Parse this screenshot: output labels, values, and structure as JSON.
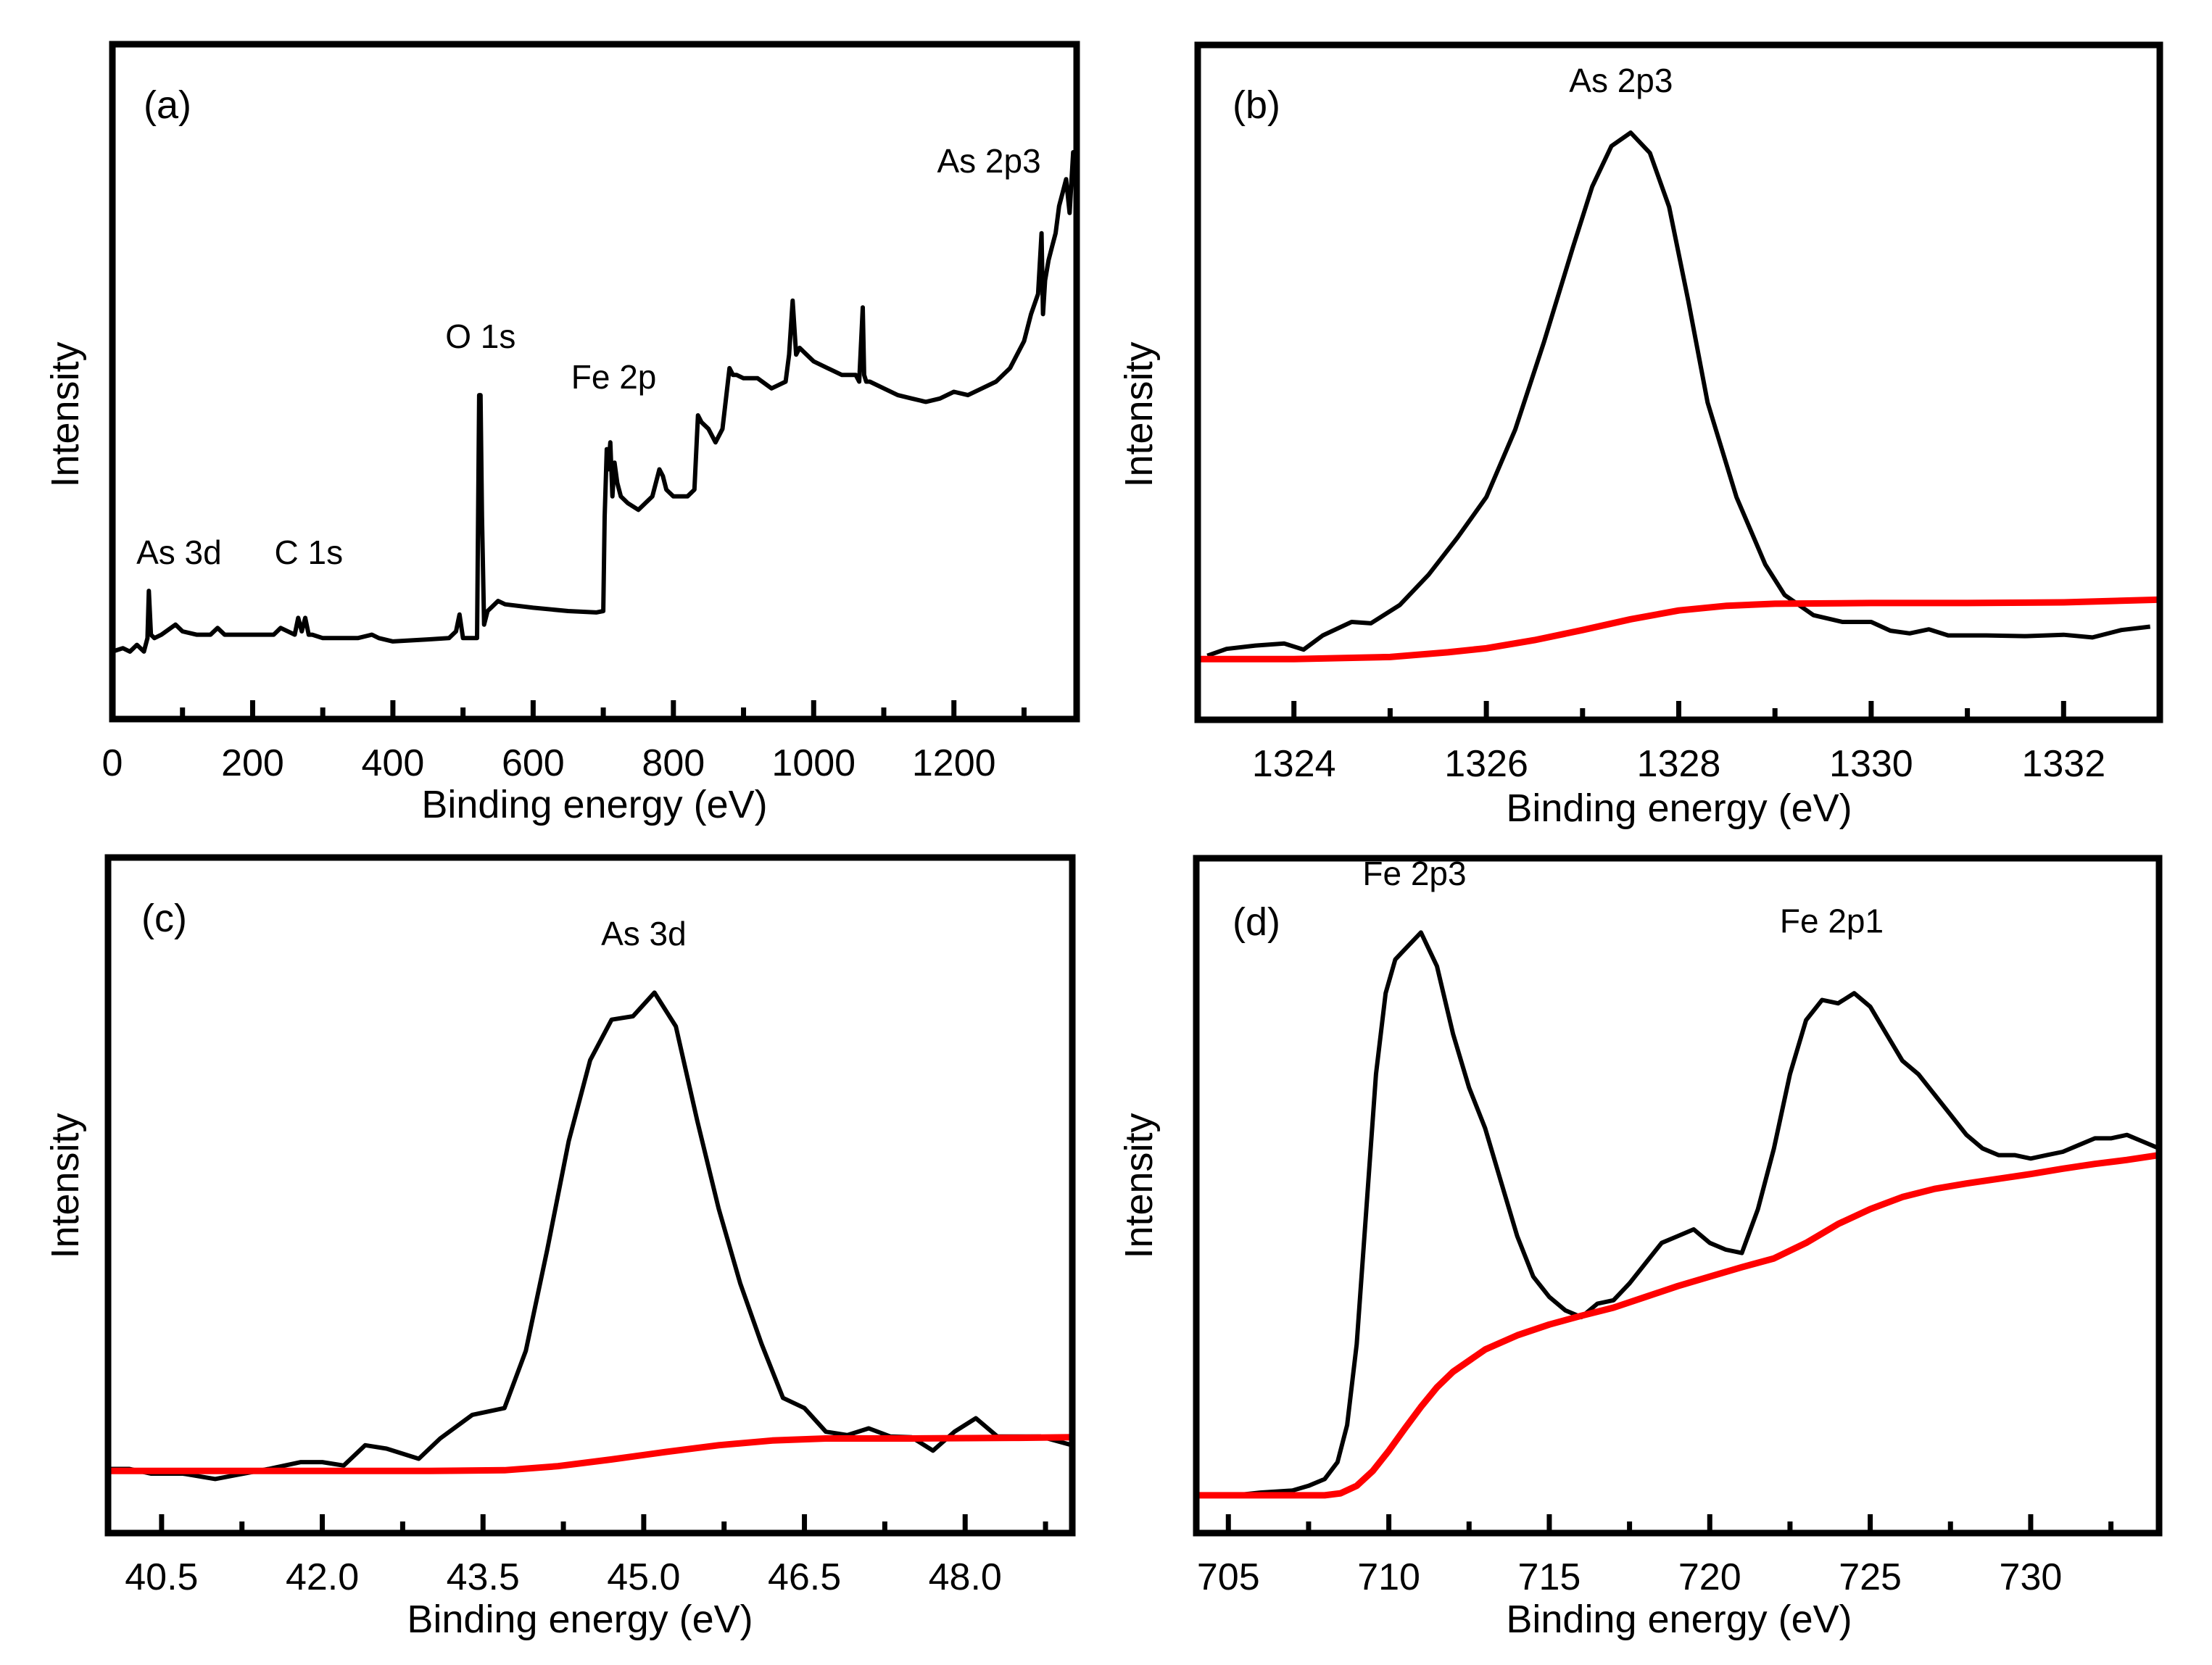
{
  "chart_data": [
    {
      "id": "a",
      "type": "line",
      "panel_label": "(a)",
      "title": "",
      "xlabel": "Binding energy (eV)",
      "ylabel": "Intensity",
      "xlim": [
        0,
        1375
      ],
      "ylim": [
        0,
        100
      ],
      "xticks_major": [
        0,
        200,
        400,
        600,
        800,
        1000,
        1200
      ],
      "xticks_minor": [
        100,
        300,
        500,
        700,
        900,
        1100,
        1300
      ],
      "xtick_labels": [
        "0",
        "200",
        "400",
        "600",
        "800",
        "1000",
        "1200"
      ],
      "grid": false,
      "annotations": [
        {
          "text": "As 3d",
          "x": 95,
          "y": 23
        },
        {
          "text": "C 1s",
          "x": 280,
          "y": 23
        },
        {
          "text": "O 1s",
          "x": 525,
          "y": 55
        },
        {
          "text": "Fe 2p",
          "x": 715,
          "y": 49
        },
        {
          "text": "As 2p3",
          "x": 1250,
          "y": 81
        }
      ],
      "series": [
        {
          "name": "survey",
          "color": "#000000",
          "x": [
            0,
            15,
            25,
            35,
            45,
            50,
            52,
            55,
            60,
            70,
            90,
            100,
            120,
            140,
            150,
            160,
            200,
            230,
            240,
            260,
            265,
            270,
            275,
            280,
            285,
            300,
            350,
            370,
            380,
            400,
            450,
            480,
            490,
            495,
            500,
            510,
            520,
            523,
            525,
            527,
            530,
            535,
            540,
            550,
            560,
            600,
            650,
            690,
            700,
            702,
            705,
            707,
            710,
            713,
            716,
            720,
            725,
            735,
            750,
            760,
            770,
            780,
            785,
            790,
            800,
            810,
            820,
            830,
            835,
            840,
            850,
            860,
            870,
            880,
            885,
            890,
            900,
            920,
            940,
            950,
            960,
            965,
            970,
            975,
            980,
            990,
            1000,
            1020,
            1040,
            1060,
            1065,
            1070,
            1072,
            1075,
            1080,
            1100,
            1120,
            1140,
            1160,
            1180,
            1200,
            1220,
            1240,
            1260,
            1280,
            1300,
            1310,
            1320,
            1325,
            1327,
            1330,
            1335,
            1340,
            1345,
            1350,
            1355,
            1360,
            1365,
            1370,
            1375
          ],
          "y": [
            10,
            10.5,
            10,
            11,
            10,
            12,
            19,
            12.5,
            12,
            12.5,
            14,
            13,
            12.5,
            12.5,
            13.5,
            12.5,
            12.5,
            12.5,
            13.5,
            12.5,
            15,
            13,
            15,
            12.5,
            12.5,
            12,
            12,
            12.5,
            12,
            11.5,
            11.8,
            12,
            13,
            15.5,
            12,
            12,
            12,
            48,
            48,
            30,
            14,
            16,
            16.5,
            17.5,
            17,
            16.5,
            16,
            15.8,
            16,
            30,
            40,
            37,
            41,
            33,
            38,
            35,
            33,
            32,
            31,
            32,
            33,
            37,
            36,
            34,
            33,
            33,
            33,
            34,
            45,
            44,
            43,
            41,
            43,
            52,
            51,
            51,
            50.5,
            50.5,
            49,
            49.5,
            50,
            54,
            62,
            54,
            55,
            54,
            53,
            52,
            51,
            51,
            50,
            61,
            51,
            50,
            50,
            49,
            48,
            47.5,
            47,
            47.5,
            48.5,
            48,
            49,
            50,
            52,
            56,
            60,
            63,
            72,
            60,
            65,
            68,
            70,
            72,
            76,
            78,
            80,
            75,
            84,
            82
          ]
        }
      ]
    },
    {
      "id": "b",
      "type": "line",
      "panel_label": "(b)",
      "title": "",
      "xlabel": "Binding energy (eV)",
      "ylabel": "Intensity",
      "xlim": [
        1323,
        1333
      ],
      "ylim": [
        0,
        100
      ],
      "xticks_major": [
        1324,
        1326,
        1328,
        1330,
        1332
      ],
      "xticks_minor": [
        1325,
        1327,
        1329,
        1331
      ],
      "xtick_labels": [
        "1324",
        "1326",
        "1328",
        "1330",
        "1332"
      ],
      "grid": false,
      "annotations": [
        {
          "text": "As 2p3",
          "x": 1327.4,
          "y": 93
        }
      ],
      "series": [
        {
          "name": "spectrum",
          "color": "#000000",
          "x": [
            1323.1,
            1323.3,
            1323.6,
            1323.9,
            1324.1,
            1324.3,
            1324.6,
            1324.8,
            1325.1,
            1325.4,
            1325.7,
            1326.0,
            1326.3,
            1326.6,
            1326.9,
            1327.1,
            1327.3,
            1327.5,
            1327.7,
            1327.9,
            1328.1,
            1328.3,
            1328.6,
            1328.9,
            1329.1,
            1329.4,
            1329.7,
            1330.0,
            1330.2,
            1330.4,
            1330.6,
            1330.8,
            1331.2,
            1331.6,
            1332.0,
            1332.3,
            1332.6,
            1332.9
          ],
          "y": [
            9.5,
            10.5,
            11,
            11.3,
            10.4,
            12.5,
            14.5,
            14.3,
            17,
            21.5,
            27,
            33,
            43,
            56,
            70,
            79,
            85,
            87,
            84,
            76,
            62,
            47,
            33,
            23,
            18.5,
            15.5,
            14.5,
            14.5,
            13.2,
            12.8,
            13.4,
            12.5,
            12.5,
            12.4,
            12.6,
            12.2,
            13.3,
            13.8
          ]
        },
        {
          "name": "background",
          "color": "#ff0000",
          "x": [
            1323.0,
            1324.0,
            1325.0,
            1325.6,
            1326.0,
            1326.5,
            1327.0,
            1327.5,
            1328.0,
            1328.5,
            1329.0,
            1330.0,
            1331.0,
            1332.0,
            1333.0
          ],
          "y": [
            9.0,
            9.0,
            9.3,
            10.0,
            10.6,
            11.8,
            13.3,
            14.9,
            16.2,
            16.9,
            17.2,
            17.3,
            17.3,
            17.4,
            17.8
          ]
        }
      ]
    },
    {
      "id": "c",
      "type": "line",
      "panel_label": "(c)",
      "title": "",
      "xlabel": "Binding energy (eV)",
      "ylabel": "Intensity",
      "xlim": [
        40.0,
        49.0
      ],
      "ylim": [
        0,
        100
      ],
      "xticks_major": [
        40.5,
        42.0,
        43.5,
        45.0,
        46.5,
        48.0
      ],
      "xticks_minor": [
        41.25,
        42.75,
        44.25,
        45.75,
        47.25,
        48.75
      ],
      "xtick_labels": [
        "40.5",
        "42.0",
        "43.5",
        "45.0",
        "46.5",
        "48.0"
      ],
      "grid": false,
      "annotations": [
        {
          "text": "As 3d",
          "x": 45.0,
          "y": 87
        }
      ],
      "series": [
        {
          "name": "spectrum",
          "color": "#000000",
          "x": [
            40.0,
            40.2,
            40.4,
            40.7,
            41.0,
            41.2,
            41.5,
            41.8,
            42.0,
            42.2,
            42.4,
            42.6,
            42.9,
            43.1,
            43.4,
            43.7,
            43.9,
            44.1,
            44.3,
            44.5,
            44.7,
            44.9,
            45.1,
            45.3,
            45.5,
            45.7,
            45.9,
            46.1,
            46.3,
            46.5,
            46.7,
            46.9,
            47.1,
            47.3,
            47.5,
            47.7,
            47.9,
            48.1,
            48.3,
            48.5,
            48.7,
            49.0
          ],
          "y": [
            9.5,
            9.5,
            8.8,
            8.8,
            8,
            8.6,
            9.5,
            10.5,
            10.5,
            10,
            13,
            12.5,
            11,
            14,
            17.5,
            18.5,
            27,
            42,
            58,
            70,
            76,
            76.5,
            80,
            75,
            61,
            48,
            37,
            28,
            20,
            18.5,
            15,
            14.5,
            15.5,
            14.3,
            14.2,
            12.2,
            15,
            17,
            14.3,
            14.3,
            14.3,
            13
          ]
        },
        {
          "name": "background",
          "color": "#ff0000",
          "x": [
            40.0,
            41.0,
            42.0,
            43.0,
            43.7,
            44.2,
            44.7,
            45.2,
            45.7,
            46.2,
            46.7,
            47.5,
            48.5,
            49.0
          ],
          "y": [
            9.2,
            9.2,
            9.2,
            9.2,
            9.3,
            9.9,
            10.9,
            12.0,
            13.0,
            13.7,
            14.0,
            14.0,
            14.1,
            14.2
          ]
        }
      ]
    },
    {
      "id": "d",
      "type": "line",
      "panel_label": "(d)",
      "title": "",
      "xlabel": "Binding energy (eV)",
      "ylabel": "Intensity",
      "xlim": [
        704,
        734
      ],
      "ylim": [
        0,
        100
      ],
      "xticks_major": [
        705,
        710,
        715,
        720,
        725,
        730
      ],
      "xticks_minor": [
        707.5,
        712.5,
        717.5,
        722.5,
        727.5,
        732.5
      ],
      "xtick_labels": [
        "705",
        "710",
        "715",
        "720",
        "725",
        "730"
      ],
      "grid": false,
      "annotations": [
        {
          "text": "Fe 2p3",
          "x": 710.8,
          "y": 96
        },
        {
          "text": "Fe 2p1",
          "x": 723.8,
          "y": 89
        }
      ],
      "series": [
        {
          "name": "spectrum",
          "color": "#000000",
          "x": [
            704.0,
            705.0,
            706.0,
            707.0,
            707.5,
            708.0,
            708.4,
            708.7,
            709.0,
            709.3,
            709.6,
            709.9,
            710.2,
            710.5,
            711.0,
            711.5,
            712.0,
            712.5,
            713.0,
            713.5,
            714.0,
            714.5,
            715.0,
            715.5,
            716.0,
            716.5,
            717.0,
            717.5,
            718.0,
            718.5,
            719.0,
            719.5,
            720.0,
            720.5,
            721.0,
            721.5,
            722.0,
            722.5,
            723.0,
            723.5,
            724.0,
            724.5,
            725.0,
            725.5,
            726.0,
            726.5,
            727.0,
            727.5,
            728.0,
            728.5,
            729.0,
            729.5,
            730.0,
            730.5,
            731.0,
            731.5,
            732.0,
            732.5,
            733.0,
            733.5,
            734.0
          ],
          "y": [
            5.6,
            5.5,
            6.0,
            6.3,
            7.0,
            8.0,
            10.5,
            16,
            28,
            48,
            68,
            80,
            85,
            86.5,
            89,
            84,
            74,
            66,
            60,
            52,
            44,
            38,
            35,
            33,
            32,
            34,
            34.5,
            37,
            40,
            43,
            44,
            45,
            43,
            42,
            41.5,
            48,
            57,
            68,
            76,
            79,
            78.5,
            80,
            78,
            74,
            70,
            68,
            65,
            62,
            59,
            57,
            56,
            56,
            55.5,
            56,
            56.5,
            57.5,
            58.5,
            58.5,
            59,
            58,
            57
          ]
        },
        {
          "name": "background",
          "color": "#ff0000",
          "x": [
            704.0,
            706.0,
            708.0,
            708.5,
            709.0,
            709.5,
            710.0,
            710.5,
            711.0,
            711.5,
            712.0,
            713.0,
            714.0,
            715.0,
            716.0,
            717.0,
            718.0,
            719.0,
            720.0,
            721.0,
            722.0,
            723.0,
            724.0,
            725.0,
            726.0,
            727.0,
            728.0,
            729.0,
            730.0,
            731.0,
            732.0,
            733.0,
            734.0
          ],
          "y": [
            5.6,
            5.6,
            5.6,
            5.9,
            7.0,
            9.2,
            12.2,
            15.5,
            18.7,
            21.6,
            23.9,
            27.2,
            29.3,
            30.9,
            32.2,
            33.4,
            35.0,
            36.6,
            38.0,
            39.4,
            40.7,
            43.0,
            45.8,
            48.0,
            49.8,
            51.0,
            51.8,
            52.5,
            53.2,
            54.0,
            54.7,
            55.3,
            56.0
          ]
        }
      ]
    }
  ]
}
